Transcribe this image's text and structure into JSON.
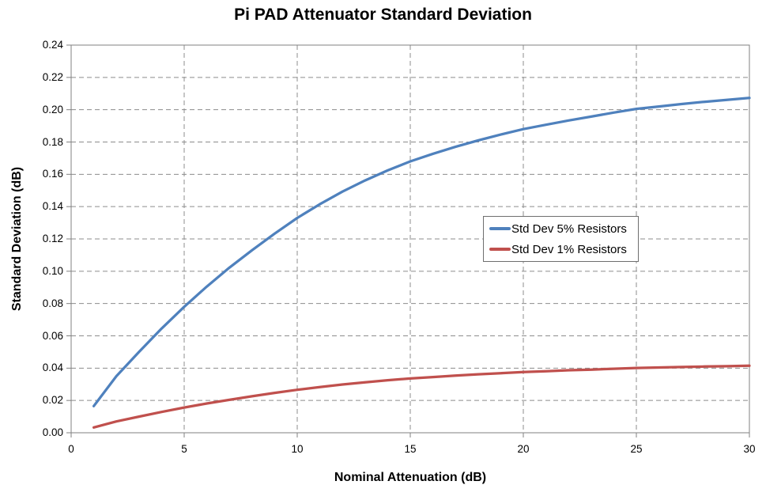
{
  "chart_data": {
    "type": "line",
    "title": "Pi PAD Attenuator Standard Deviation",
    "xlabel": "Nominal Attenuation (dB)",
    "ylabel": "Standard Deviation (dB)",
    "xlim": [
      0,
      30
    ],
    "ylim": [
      0,
      0.24
    ],
    "x_tick_values": [
      0,
      5,
      10,
      15,
      20,
      25,
      30
    ],
    "x_tick_labels": [
      "0",
      "5",
      "10",
      "15",
      "20",
      "25",
      "30"
    ],
    "y_tick_values": [
      0,
      0.02,
      0.04,
      0.06,
      0.08,
      0.1,
      0.12,
      0.14,
      0.16,
      0.18,
      0.2,
      0.22,
      0.24
    ],
    "y_tick_labels": [
      "0.00",
      "0.02",
      "0.04",
      "0.06",
      "0.08",
      "0.10",
      "0.12",
      "0.14",
      "0.16",
      "0.18",
      "0.20",
      "0.22",
      "0.24"
    ],
    "grid": "dashed-both-axes",
    "legend_position": "middle-right-inside",
    "x": [
      1,
      2,
      3,
      4,
      5,
      6,
      7,
      8,
      9,
      10,
      11,
      12,
      13,
      14,
      15,
      16,
      17,
      18,
      19,
      20,
      21,
      22,
      23,
      24,
      25,
      26,
      27,
      28,
      29,
      30
    ],
    "series": [
      {
        "name": "Std Dev 5% Resistors",
        "color": "#4F81BD",
        "values": [
          0.0165,
          0.035,
          0.05,
          0.0645,
          0.078,
          0.0905,
          0.1022,
          0.113,
          0.1233,
          0.133,
          0.1415,
          0.1493,
          0.1562,
          0.1624,
          0.168,
          0.1727,
          0.177,
          0.181,
          0.1846,
          0.188,
          0.1907,
          0.1933,
          0.1957,
          0.1982,
          0.2005,
          0.202,
          0.2035,
          0.2049,
          0.2061,
          0.2073
        ]
      },
      {
        "name": "Std Dev 1% Resistors",
        "color": "#C0504D",
        "values": [
          0.0033,
          0.007,
          0.01,
          0.0129,
          0.0156,
          0.0181,
          0.0204,
          0.0226,
          0.0247,
          0.0266,
          0.0283,
          0.0299,
          0.0312,
          0.0325,
          0.0336,
          0.0345,
          0.0354,
          0.0362,
          0.0369,
          0.0376,
          0.0381,
          0.0387,
          0.0391,
          0.0396,
          0.0401,
          0.0404,
          0.0407,
          0.041,
          0.0412,
          0.0415
        ]
      }
    ],
    "colors": {
      "gridline": "#8C8C8C",
      "axis_and_border": "#808080",
      "legend_border": "#6E6E6E",
      "text": "#000000",
      "background": "#FFFFFF"
    }
  }
}
